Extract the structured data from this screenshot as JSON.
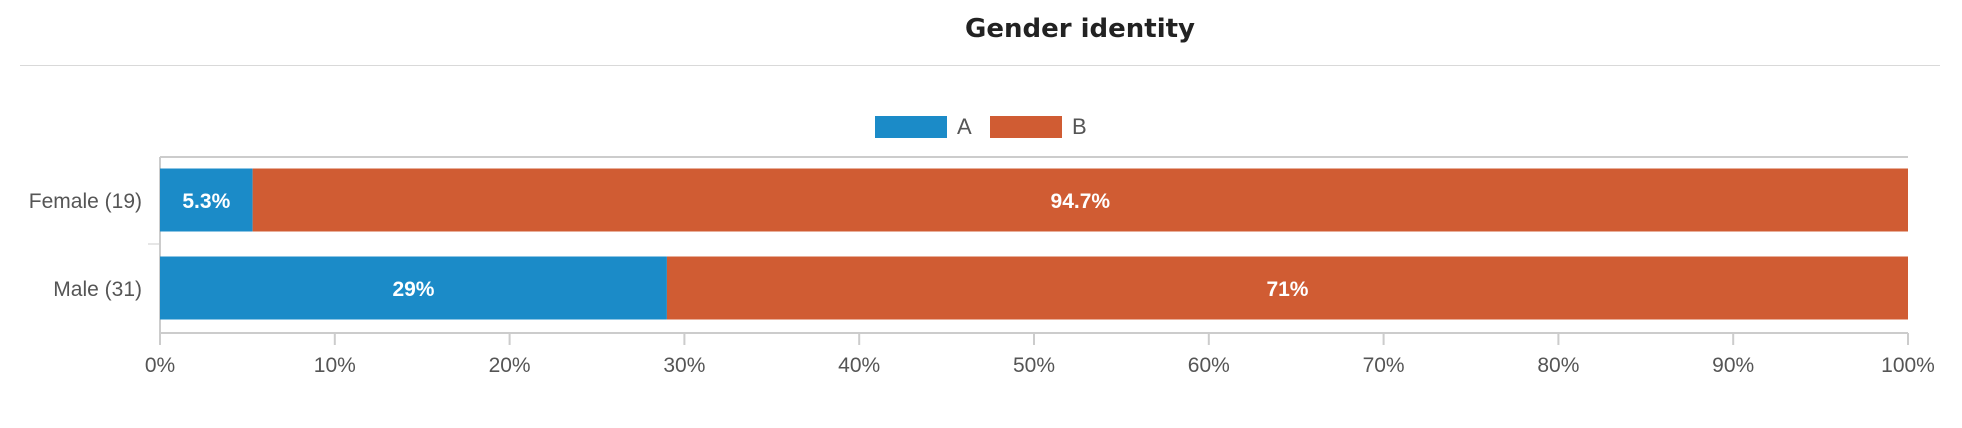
{
  "title": "Gender identity",
  "colors": {
    "A": "#1b8bc8",
    "B": "#d05c33"
  },
  "chart_data": {
    "type": "bar",
    "orientation": "horizontal",
    "stacked": true,
    "categories": [
      "Female (19)",
      "Male (31)"
    ],
    "series": [
      {
        "name": "A",
        "values": [
          5.3,
          29
        ],
        "labels": [
          "5.3%",
          "29%"
        ]
      },
      {
        "name": "B",
        "values": [
          94.7,
          71
        ],
        "labels": [
          "94.7%",
          "71%"
        ]
      }
    ],
    "xlim": [
      0,
      100
    ],
    "xticks": [
      "0%",
      "10%",
      "20%",
      "30%",
      "40%",
      "50%",
      "60%",
      "70%",
      "80%",
      "90%",
      "100%"
    ],
    "legend": "top-center",
    "grid": false
  }
}
